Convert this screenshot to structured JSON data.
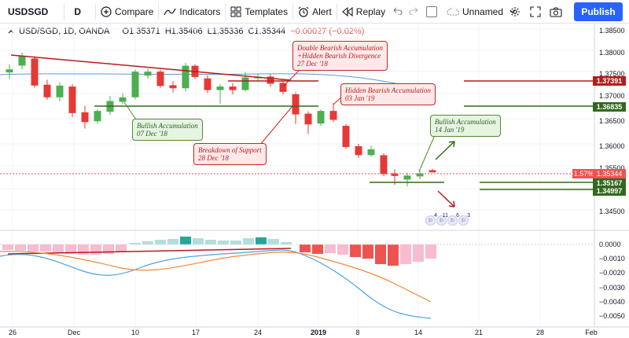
{
  "toolbar": {
    "symbol": "USDSGD",
    "interval": "D",
    "compare_label": "Compare",
    "indicators_label": "Indicators",
    "templates_label": "Templates",
    "alert_label": "Alert",
    "replay_label": "Replay",
    "layout_name": "Unnamed",
    "publish_label": "Publish"
  },
  "legend": {
    "title": "USD/SGD, 1D, OANDA",
    "open": "O1.35371",
    "high": "H1.35406",
    "low": "L1.35336",
    "close": "C1.35344",
    "change": "−0.00027 (−0.02%)"
  },
  "price_axis": {
    "labels": [
      "1.38500",
      "1.38000",
      "1.37500",
      "1.37000",
      "1.36500",
      "1.36000",
      "1.35500",
      "1.35000",
      "1.34500"
    ],
    "tags": {
      "resistance": "1.37391",
      "support_upper": "1.36835",
      "current": "1.35344",
      "current_pct": "-1.57%",
      "support_mid": "1.35167",
      "support_low": "1.34997"
    }
  },
  "osc_axis": {
    "labels": [
      "0.0000",
      "−0.0010",
      "−0.0020",
      "−0.0030",
      "−0.0040",
      "−0.0050"
    ]
  },
  "time_axis": {
    "labels": [
      "26",
      "Dec",
      "10",
      "17",
      "24",
      "2019",
      "8",
      "14",
      "21",
      "28",
      "Feb"
    ]
  },
  "annotations": {
    "bullish_acc_dec": [
      "Bullish Accumulation",
      "07 Dec '18"
    ],
    "double_bearish": [
      "Double Bearish Accumulation",
      "+Hidden Bearish Divergence",
      "27 Dec '18"
    ],
    "breakdown_support": [
      "Breakdown of Support",
      "28 Dec '18"
    ],
    "hidden_bearish": [
      "Hidden Bearish Accumulation",
      "03 Jan '19"
    ],
    "bullish_acc_jan": [
      "Bullish Accumulation",
      "14 Jan '19"
    ]
  },
  "events": {
    "counts": [
      "4",
      "11",
      "6",
      "3"
    ]
  },
  "colors": {
    "bull": "#4caf50",
    "bear": "#e53935",
    "resistance": "#b71c1c",
    "support": "#33691e",
    "accent": "#2962ff",
    "macd_line": "#4aa3df",
    "signal_line": "#ee8a3c"
  }
}
